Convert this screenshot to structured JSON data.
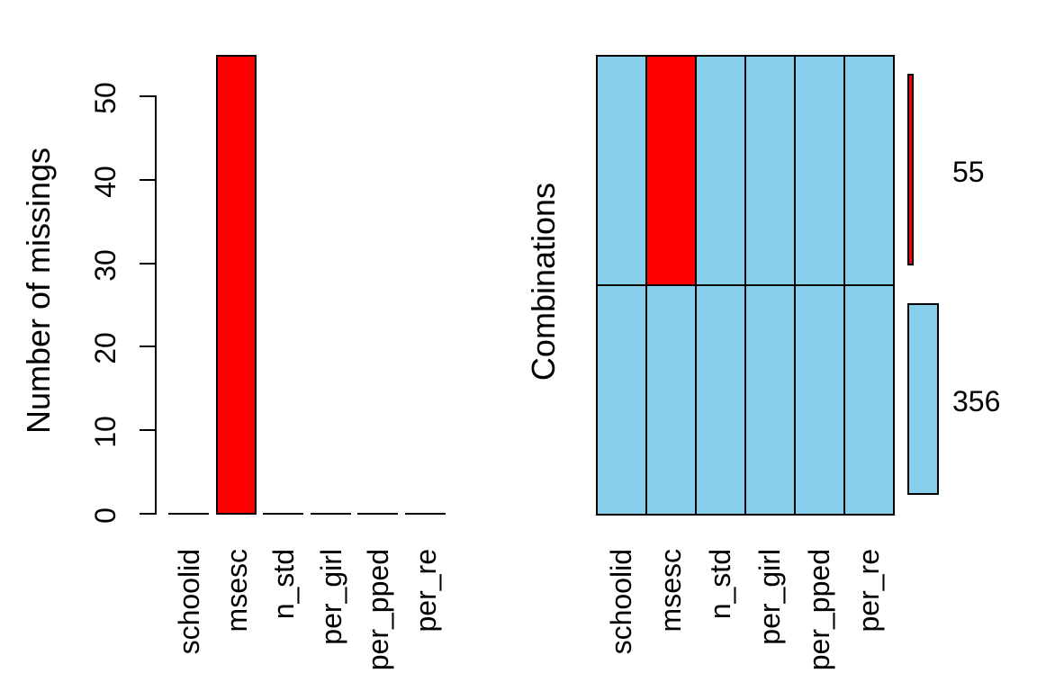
{
  "figure": {
    "background": "#ffffff",
    "description_visible_text_only": true
  },
  "chart_data": [
    {
      "type": "bar",
      "panel": "left",
      "ylabel": "Number of missings",
      "categories": [
        "schoolid",
        "msesc",
        "n_std",
        "per_girl",
        "per_pped",
        "per_re"
      ],
      "values": [
        0,
        55,
        0,
        0,
        0,
        0
      ],
      "yticks": [
        0,
        10,
        20,
        30,
        40,
        50
      ],
      "ylim": [
        0,
        55
      ],
      "grid": false,
      "bar_color": "#FF0000",
      "axis_color": "#000000"
    },
    {
      "type": "heatmap",
      "panel": "right",
      "ylabel": "Combinations",
      "categories": [
        "schoolid",
        "msesc",
        "n_std",
        "per_girl",
        "per_pped",
        "per_re"
      ],
      "combinations": [
        {
          "missing": [
            "msesc"
          ],
          "count": 55
        },
        {
          "missing": [],
          "count": 356
        }
      ],
      "count_labels": [
        "55",
        "356"
      ],
      "colors": {
        "missing": "#FF0000",
        "observed": "#87CEEB",
        "border": "#000000"
      },
      "legend_position": "right"
    }
  ]
}
